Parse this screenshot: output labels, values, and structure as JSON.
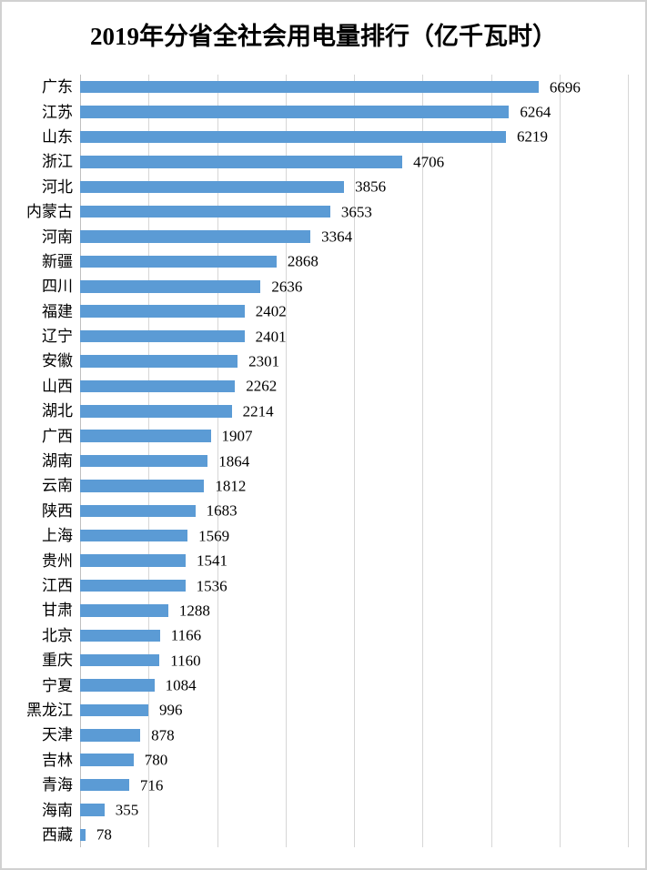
{
  "frame": {
    "background_color": "#ffffff",
    "border_color": "#d1d1d1"
  },
  "chart_data": {
    "type": "bar",
    "orientation": "horizontal",
    "title": "2019年分省全社会用电量排行（亿千瓦时）",
    "categories": [
      "广东",
      "江苏",
      "山东",
      "浙江",
      "河北",
      "内蒙古",
      "河南",
      "新疆",
      "四川",
      "福建",
      "辽宁",
      "安徽",
      "山西",
      "湖北",
      "广西",
      "湖南",
      "云南",
      "陕西",
      "上海",
      "贵州",
      "江西",
      "甘肃",
      "北京",
      "重庆",
      "宁夏",
      "黑龙江",
      "天津",
      "吉林",
      "青海",
      "海南",
      "西藏"
    ],
    "values": [
      6696,
      6264,
      6219,
      4706,
      3856,
      3653,
      3364,
      2868,
      2636,
      2402,
      2401,
      2301,
      2262,
      2214,
      1907,
      1864,
      1812,
      1683,
      1569,
      1541,
      1536,
      1288,
      1166,
      1160,
      1084,
      996,
      878,
      780,
      716,
      355,
      78
    ],
    "xlabel": "",
    "ylabel": "",
    "xlim": [
      0,
      8000
    ],
    "gridline_interval": 1000,
    "grid": true,
    "legend": "none",
    "value_label_position": "outside-end",
    "bar_color": "#5b9bd5",
    "gridline_color": "#d6d6d6",
    "axis_line_color": "#bfbfbf",
    "text_color": "#000000"
  }
}
